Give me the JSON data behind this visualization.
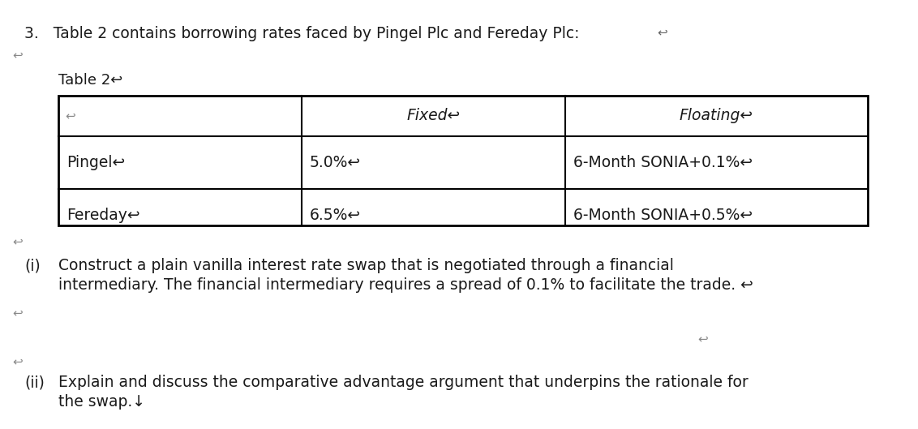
{
  "background_color": "#ffffff",
  "text_color": "#1a1a1a",
  "font_size_heading": 13.5,
  "font_size_table_label": 13,
  "font_size_table_header": 13.5,
  "font_size_table_body": 13.5,
  "font_size_questions": 13.5,
  "font_size_arrow": 11,
  "heading": "3.   Table 2 contains borrowing rates faced by Pingel Plc and Fereday Plc:",
  "heading_arrow": "↩",
  "table_label": "Table 2",
  "table_label_arrow": "↩",
  "col0_header": "↩",
  "col1_header": "Fixed",
  "col1_header_arrow": "↩",
  "col2_header": "Floating",
  "col2_header_arrow": "↩",
  "row1_col0": "Pingel",
  "row1_col0_arrow": "↩",
  "row1_col1": "5.0%",
  "row1_col1_arrow": "↩",
  "row1_col2": "6-Month SONIA+0.1%",
  "row1_col2_arrow": "↩",
  "row2_col0": "Fereday",
  "row2_col0_arrow": "↩",
  "row2_col1": "6.5%",
  "row2_col1_arrow": "↩",
  "row2_col2": "6-Month SONIA+0.5%",
  "row2_col2_arrow": "↩",
  "q1_label": "(i)",
  "q1_line1": "Construct a plain vanilla interest rate swap that is negotiated through a financial",
  "q1_line2": "intermediary. The financial intermediary requires a spread of 0.1% to facilitate the trade.",
  "q1_line2_arrow": "↩",
  "q2_label": "(ii)",
  "q2_line1": "Explain and discuss the comparative advantage argument that underpins the rationale for",
  "q2_line2": "the swap.",
  "q2_line2_arrow": "↓",
  "arrow_left": "↩"
}
